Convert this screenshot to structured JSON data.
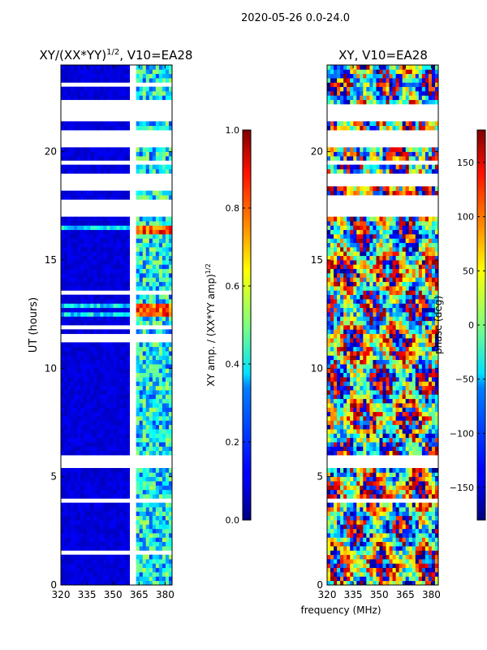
{
  "figure": {
    "suptitle": "2020-05-26 0.0-24.0",
    "xlabel_shared": "frequency (MHz)"
  },
  "chart_data": [
    {
      "type": "heatmap",
      "title_text": "XY/(XX*YY)",
      "title_superscript": "1/2",
      "title_suffix": ", V10=EA28",
      "xlabel": "",
      "ylabel": "UT (hours)",
      "xlim": [
        320,
        384
      ],
      "ylim": [
        0,
        24
      ],
      "xticks": [
        320,
        335,
        350,
        365,
        380
      ],
      "yticks": [
        0,
        5,
        10,
        15,
        20
      ],
      "flagged_band_mhz": [
        360,
        364
      ],
      "high_band_mhz": [
        364,
        384
      ],
      "colorbar": {
        "label": "XY amp. / (XX*YY amp)",
        "label_superscript": "1/2",
        "range": [
          0.0,
          1.0
        ],
        "ticks": [
          "0.0",
          "0.2",
          "0.4",
          "0.6",
          "0.8",
          "1.0"
        ],
        "tick_values": [
          0.0,
          0.2,
          0.4,
          0.6,
          0.8,
          1.0
        ]
      },
      "flagged_time_ranges_ut": [
        [
          1.45,
          1.55
        ],
        [
          3.75,
          4.05
        ],
        [
          5.45,
          5.95
        ],
        [
          11.2,
          11.5
        ],
        [
          11.85,
          12.05
        ],
        [
          13.45,
          13.55
        ],
        [
          14.55,
          14.62
        ],
        [
          17.0,
          17.85
        ],
        [
          18.25,
          19.05
        ],
        [
          19.35,
          19.55
        ],
        [
          20.3,
          21.0
        ],
        [
          21.35,
          22.3
        ],
        [
          23.0,
          23.1
        ]
      ],
      "bright_time_ranges_ut": [
        [
          12.4,
          12.9
        ],
        [
          16.1,
          16.5
        ]
      ]
    },
    {
      "type": "heatmap",
      "title_text": "XY, V10=EA28",
      "xlabel": "",
      "ylabel": "",
      "xlim": [
        320,
        384
      ],
      "ylim": [
        0,
        24
      ],
      "xticks": [
        320,
        335,
        350,
        365,
        380
      ],
      "yticks": [
        0,
        5,
        10,
        15,
        20
      ],
      "colorbar": {
        "label": "phase (deg)",
        "range": [
          -180,
          180
        ],
        "ticks": [
          "−150",
          "−100",
          "−50",
          "0",
          "50",
          "100",
          "150"
        ],
        "tick_values": [
          -150,
          -100,
          -50,
          0,
          50,
          100,
          150
        ]
      },
      "flagged_time_ranges_ut": [
        [
          3.8,
          4.0
        ],
        [
          5.5,
          6.0
        ],
        [
          17.0,
          17.9
        ],
        [
          18.3,
          19.0
        ],
        [
          19.4,
          19.55
        ],
        [
          20.3,
          20.95
        ],
        [
          21.4,
          22.25
        ]
      ]
    }
  ]
}
